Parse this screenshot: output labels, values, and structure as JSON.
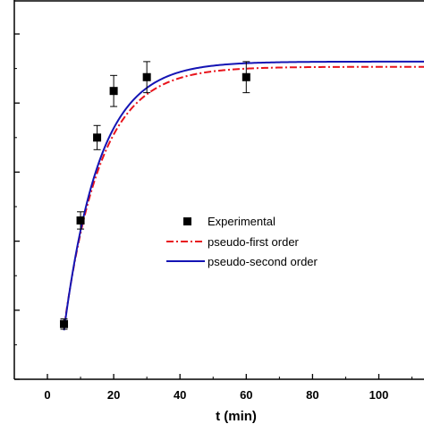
{
  "chart_data": {
    "type": "scatter",
    "xlabel": "t (min)",
    "ylabel": "",
    "xlim": [
      -10,
      115
    ],
    "ylim": [
      0,
      124
    ],
    "x_ticks": [
      0,
      20,
      40,
      60,
      80,
      100
    ],
    "x_tick_labels": [
      "0",
      "20",
      "40",
      "60",
      "80",
      "100"
    ],
    "y_ticks": [
      0,
      20,
      40,
      60,
      80,
      100,
      120
    ],
    "grid": false,
    "legend": {
      "position": "center-right",
      "entries": [
        "Experimental",
        "pseudo-first order",
        "pseudo-second order"
      ]
    },
    "series": [
      {
        "name": "Experimental",
        "kind": "points",
        "marker": "square",
        "color": "#000000",
        "x": [
          5,
          10,
          15,
          20,
          30,
          60
        ],
        "y": [
          16,
          46,
          70,
          83.5,
          87.5,
          87.5
        ],
        "error": [
          1.5,
          2.5,
          3.5,
          4.5,
          4.5,
          4.5
        ]
      },
      {
        "name": "pseudo-first order",
        "kind": "line",
        "style": "dash-dot",
        "color": "#e8141c",
        "model": {
          "qe": 90.5,
          "k": 0.09,
          "t0": 3.0
        }
      },
      {
        "name": "pseudo-second order",
        "kind": "line",
        "style": "solid",
        "color": "#1414b4",
        "model": {
          "qe": 92.0,
          "k": 0.093,
          "t0": 3.2
        }
      }
    ]
  }
}
